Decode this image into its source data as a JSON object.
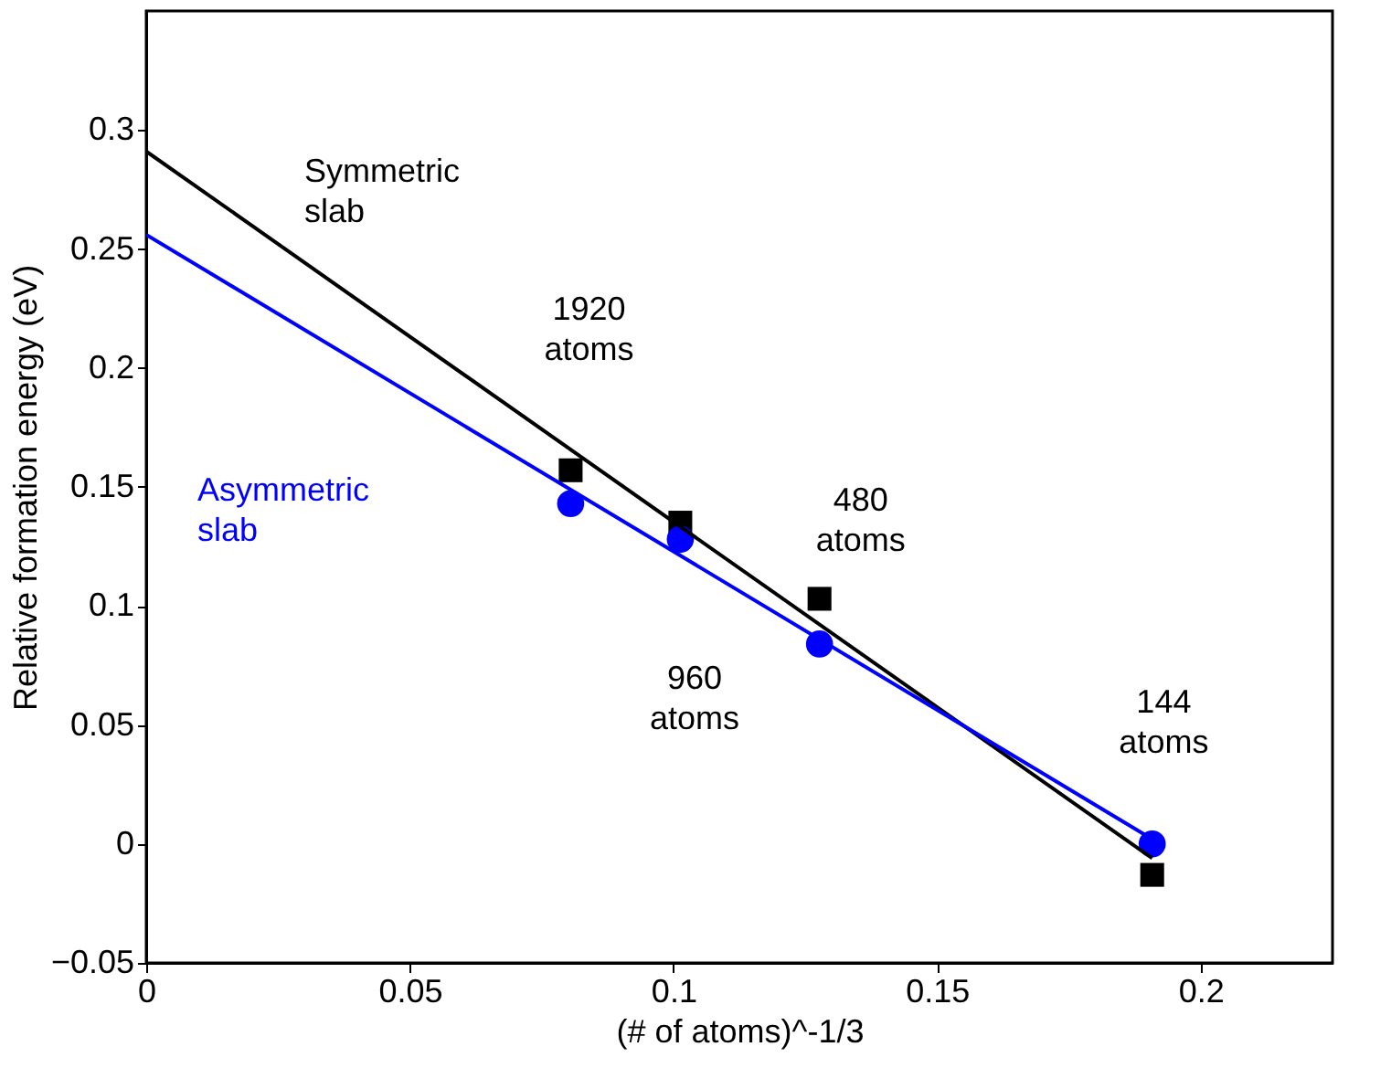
{
  "chart_data": {
    "type": "scatter",
    "xlabel": "(# of atoms)^-1/3",
    "ylabel": "Relative formation energy (eV)",
    "xlim": [
      0,
      0.225
    ],
    "xticks": [
      0,
      0.05,
      0.1,
      0.15,
      0.2
    ],
    "ylim": [
      -0.05,
      0.35
    ],
    "yticks": [
      -0.05,
      0,
      0.05,
      0.1,
      0.15,
      0.2,
      0.25,
      0.3
    ],
    "grid": false,
    "series": [
      {
        "type": "scatter",
        "marker": "square",
        "color": "#000000",
        "x": [
          0.0805,
          0.1013,
          0.1277,
          0.1908
        ],
        "values": [
          0.157,
          0.135,
          0.103,
          -0.013
        ]
      },
      {
        "type": "scatter",
        "marker": "circle",
        "color": "#0000ff",
        "x": [
          0.0805,
          0.1013,
          0.1277,
          0.1908
        ],
        "values": [
          0.143,
          0.128,
          0.084,
          0.0
        ]
      },
      {
        "type": "line",
        "name": "Symmetric\nslab",
        "color": "#000000",
        "x": [
          0,
          0.1908
        ],
        "values": [
          0.291,
          -0.006
        ]
      },
      {
        "type": "line",
        "name": "Asymmetric\nslab",
        "color": "#0000ff",
        "x": [
          0,
          0.1908
        ],
        "values": [
          0.256,
          0.002
        ]
      }
    ],
    "annotations": [
      "1920\natoms",
      "960\natoms",
      "480\natoms",
      "144\natoms"
    ]
  }
}
